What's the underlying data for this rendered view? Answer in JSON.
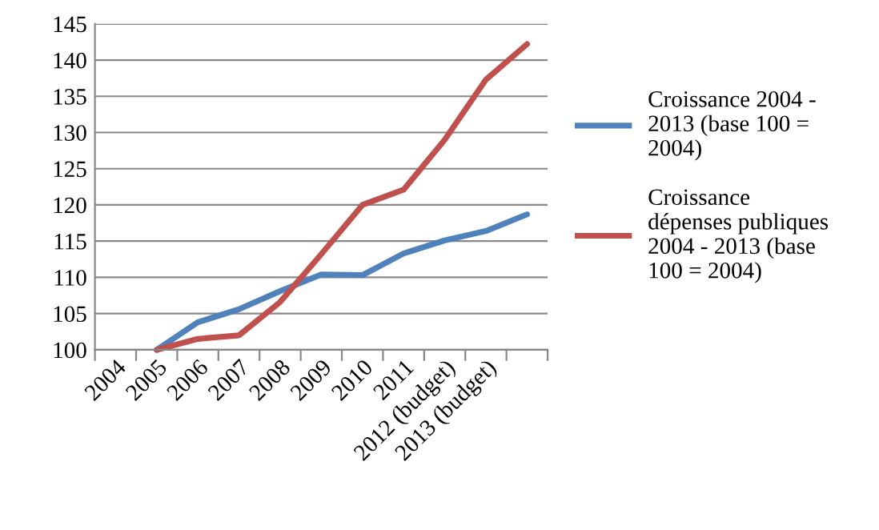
{
  "chart_data": {
    "type": "line",
    "categories": [
      "2004",
      "2005",
      "2006",
      "2007",
      "2008",
      "2009",
      "2010",
      "2011",
      "2012 (budget)",
      "2013 (budget)",
      null
    ],
    "series": [
      {
        "name": "Croissance 2004 - 2013 (base 100 = 2004)",
        "color": "#4f81bd",
        "values": [
          null,
          100,
          103.8,
          105.6,
          108.1,
          110.4,
          110.3,
          113.3,
          115.1,
          116.4,
          118.7
        ]
      },
      {
        "name": "Croissance dépenses publiques 2004 - 2013 (base 100 = 2004)",
        "color": "#c0504d",
        "values": [
          null,
          100,
          101.5,
          102.0,
          106.6,
          113.2,
          120.0,
          122.1,
          129.0,
          137.3,
          142.2
        ]
      }
    ],
    "ylim": [
      100,
      145
    ],
    "yticks": [
      100,
      105,
      110,
      115,
      120,
      125,
      130,
      135,
      140,
      145
    ],
    "grid": "y",
    "legend": "right",
    "marker": "none",
    "line_style": "solid"
  }
}
